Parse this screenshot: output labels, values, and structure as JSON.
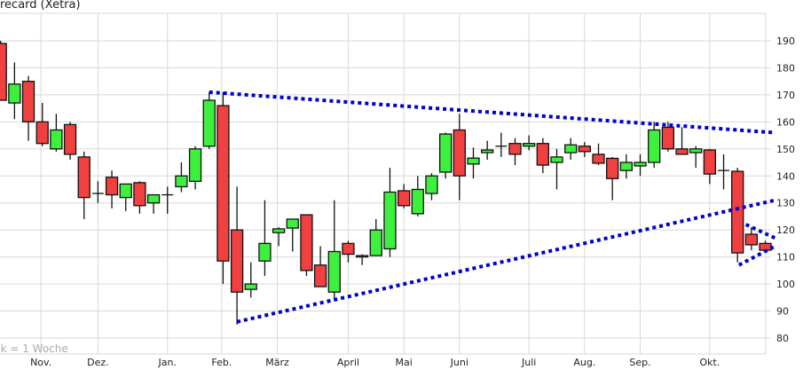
{
  "chart_data": {
    "type": "candlestick",
    "title": "recard (Xetra)",
    "note": "ck = 1 Woche",
    "ylim": [
      75,
      200
    ],
    "yticks": [
      80,
      90,
      100,
      110,
      120,
      130,
      140,
      150,
      160,
      170,
      180,
      190
    ],
    "grid": true,
    "colors": {
      "up": "#3df03d",
      "down": "#f04040",
      "trendline": "#0000cc",
      "grid": "#d8d8d8"
    },
    "xticks": [
      {
        "label": "Nov.",
        "week": 2.9
      },
      {
        "label": "Dez.",
        "week": 7
      },
      {
        "label": "Jan.",
        "week": 12
      },
      {
        "label": "Feb.",
        "week": 15.9
      },
      {
        "label": "März",
        "week": 19.9
      },
      {
        "label": "April",
        "week": 25
      },
      {
        "label": "Mai",
        "week": 29
      },
      {
        "label": "Juni",
        "week": 33
      },
      {
        "label": "Juli",
        "week": 38
      },
      {
        "label": "Aug.",
        "week": 42
      },
      {
        "label": "Sep.",
        "week": 46
      },
      {
        "label": "Okt.",
        "week": 51
      }
    ],
    "candles": [
      [
        189,
        190,
        168,
        168
      ],
      [
        167,
        182,
        161,
        174
      ],
      [
        175,
        177,
        153,
        160
      ],
      [
        160,
        167,
        151,
        152
      ],
      [
        150,
        163,
        149,
        157
      ],
      [
        159,
        160,
        146,
        148
      ],
      [
        147,
        149,
        124,
        132
      ],
      [
        133.5,
        138,
        130,
        133.5
      ],
      [
        139.5,
        142,
        128,
        133
      ],
      [
        132,
        137,
        127,
        137
      ],
      [
        137.5,
        138,
        126,
        129
      ],
      [
        130,
        133,
        126,
        133
      ],
      [
        133,
        136,
        126,
        133
      ],
      [
        136,
        145,
        134,
        140
      ],
      [
        138,
        151,
        135,
        150
      ],
      [
        151,
        171,
        150,
        168
      ],
      [
        166,
        171,
        100,
        108.5
      ],
      [
        120,
        136,
        85,
        97
      ],
      [
        98,
        108,
        95,
        100
      ],
      [
        108.5,
        131,
        103,
        115
      ],
      [
        119,
        121,
        114,
        120.4
      ],
      [
        120.7,
        124,
        112,
        124
      ],
      [
        125.6,
        125.6,
        103,
        105
      ],
      [
        107,
        114,
        99,
        99
      ],
      [
        97,
        131,
        94,
        112
      ],
      [
        115,
        116,
        108,
        111
      ],
      [
        110,
        111,
        107,
        110.5
      ],
      [
        110.5,
        124,
        110.5,
        120
      ],
      [
        113,
        143,
        110,
        134
      ],
      [
        134.5,
        137,
        128,
        129
      ],
      [
        126,
        140,
        125,
        135
      ],
      [
        133.5,
        141,
        131,
        140
      ],
      [
        141.4,
        156,
        139,
        155.5
      ],
      [
        157,
        163,
        131,
        140
      ],
      [
        144.4,
        150.5,
        139,
        146.6
      ],
      [
        148.6,
        153,
        146,
        149.6
      ],
      [
        151,
        156,
        147,
        151
      ],
      [
        152,
        154,
        144,
        148
      ],
      [
        151,
        155,
        149.5,
        152
      ],
      [
        152,
        154,
        141,
        144
      ],
      [
        145,
        150,
        135,
        147
      ],
      [
        148.6,
        154,
        146,
        151.5
      ],
      [
        151,
        152.5,
        147,
        149
      ],
      [
        148,
        152,
        144,
        144.7
      ],
      [
        146.5,
        147,
        131,
        139
      ],
      [
        142,
        148,
        139,
        145
      ],
      [
        143.7,
        148,
        140,
        145
      ],
      [
        145,
        160,
        143,
        157
      ],
      [
        158,
        160,
        149,
        150
      ],
      [
        150,
        158,
        148,
        148
      ],
      [
        148.6,
        151,
        143,
        150
      ],
      [
        149.6,
        150,
        137,
        140.7
      ],
      [
        142,
        148,
        135,
        142
      ],
      [
        141.7,
        143,
        108,
        111.5
      ],
      [
        118.4,
        121,
        112.5,
        114.5
      ],
      [
        115,
        116,
        112,
        112.5
      ]
    ],
    "trendlines": [
      {
        "from": {
          "week": 15.0,
          "value": 171
        },
        "to": {
          "week": 55.7,
          "value": 156
        }
      },
      {
        "from": {
          "week": 17.0,
          "value": 86
        },
        "to": {
          "week": 55.7,
          "value": 131
        }
      },
      {
        "from": {
          "week": 53.6,
          "value": 122
        },
        "to": {
          "week": 55.7,
          "value": 117
        }
      },
      {
        "from": {
          "week": 53.1,
          "value": 107
        },
        "to": {
          "week": 55.7,
          "value": 114
        }
      }
    ]
  }
}
